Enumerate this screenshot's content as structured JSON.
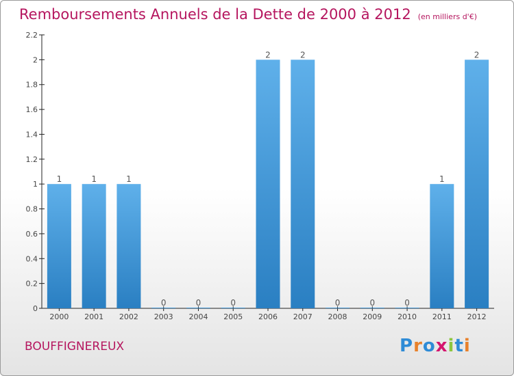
{
  "chart_data": {
    "type": "bar",
    "title": "Remboursements Annuels de la Dette de 2000 à 2012",
    "subtitle": "(en milliers d'€)",
    "categories": [
      "2000",
      "2001",
      "2002",
      "2003",
      "2004",
      "2005",
      "2006",
      "2007",
      "2008",
      "2009",
      "2010",
      "2011",
      "2012"
    ],
    "values": [
      1,
      1,
      1,
      0,
      0,
      0,
      2,
      2,
      0,
      0,
      0,
      1,
      2
    ],
    "ylim": [
      0,
      2.2
    ],
    "yticks": [
      "0",
      "0.2",
      "0.4",
      "0.6",
      "0.8",
      "1",
      "1.2",
      "1.4",
      "1.6",
      "1.8",
      "2",
      "2.2"
    ],
    "grid": false,
    "bar_color": "#3b8fd4"
  },
  "commune": "BOUFFIGNEREUX",
  "logo": {
    "text": "Proxiti",
    "letters": [
      {
        "ch": "P",
        "color": "#2e8bd6"
      },
      {
        "ch": "r",
        "color": "#e8812b"
      },
      {
        "ch": "o",
        "color": "#2e8bd6"
      },
      {
        "ch": "x",
        "color": "#d4146e"
      },
      {
        "ch": "i",
        "color": "#8cc63e"
      },
      {
        "ch": "t",
        "color": "#2e8bd6"
      },
      {
        "ch": "i",
        "color": "#e8812b"
      }
    ]
  },
  "colors": {
    "title": "#b5155e",
    "axis": "#222222"
  }
}
